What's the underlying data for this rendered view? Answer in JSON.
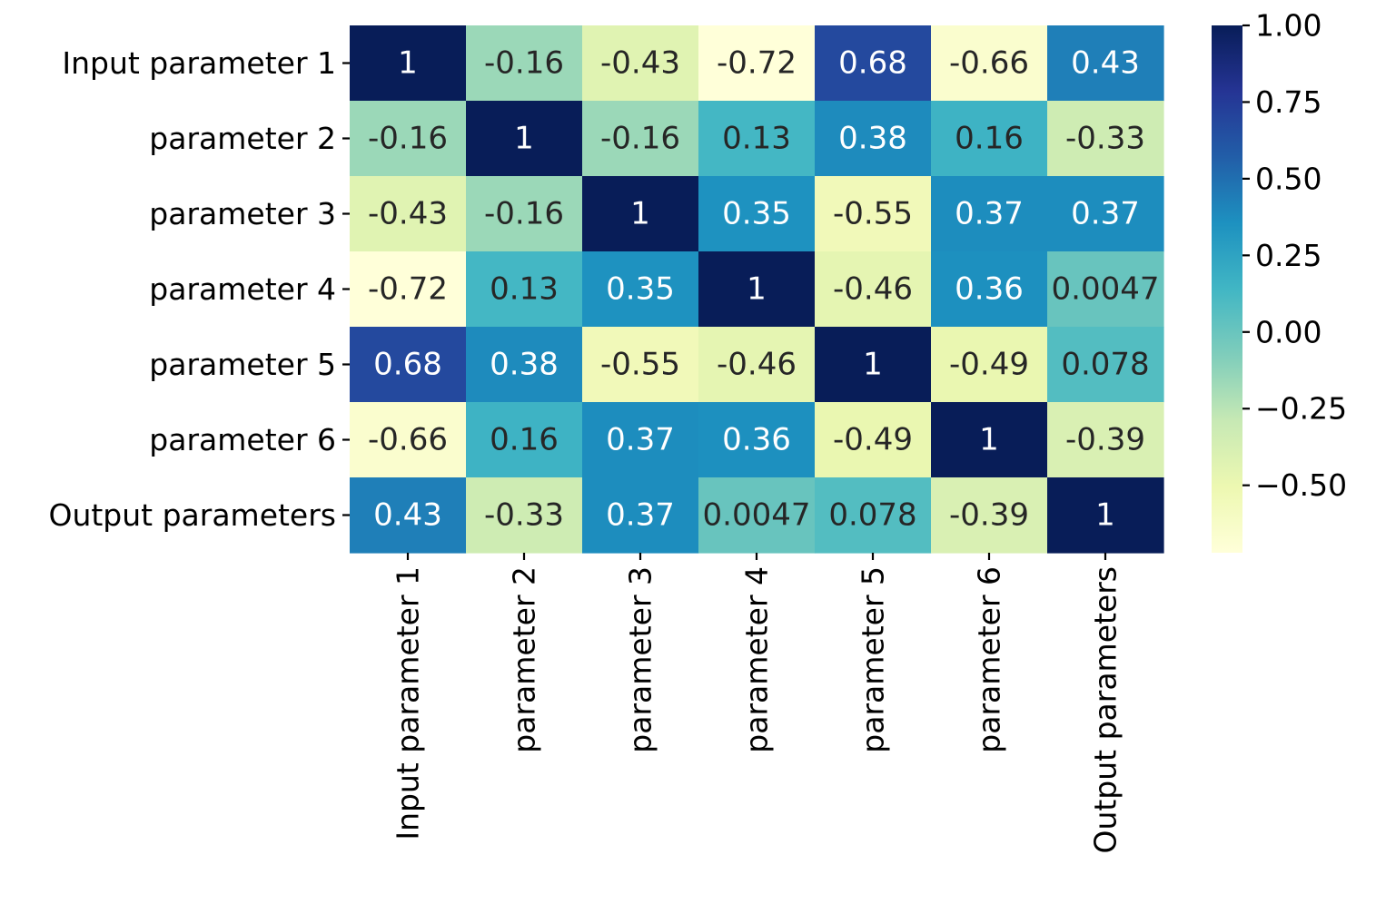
{
  "chart_data": {
    "type": "heatmap",
    "title": "",
    "xlabel": "",
    "ylabel": "",
    "row_labels": [
      "Input parameter 1",
      "parameter 2",
      "parameter 3",
      "parameter 4",
      "parameter 5",
      "parameter 6",
      "Output parameters"
    ],
    "col_labels": [
      "Input parameter 1",
      "parameter 2",
      "parameter 3",
      "parameter 4",
      "parameter 5",
      "parameter 6",
      "Output parameters"
    ],
    "values": [
      [
        1,
        -0.16,
        -0.43,
        -0.72,
        0.68,
        -0.66,
        0.43
      ],
      [
        -0.16,
        1,
        -0.16,
        0.13,
        0.38,
        0.16,
        -0.33
      ],
      [
        -0.43,
        -0.16,
        1,
        0.35,
        -0.55,
        0.37,
        0.37
      ],
      [
        -0.72,
        0.13,
        0.35,
        1,
        -0.46,
        0.36,
        0.0047
      ],
      [
        0.68,
        0.38,
        -0.55,
        -0.46,
        1,
        -0.49,
        0.078
      ],
      [
        -0.66,
        0.16,
        0.37,
        0.36,
        -0.49,
        1,
        -0.39
      ],
      [
        0.43,
        -0.33,
        0.37,
        0.0047,
        0.078,
        -0.39,
        1
      ]
    ],
    "display_values": [
      [
        "1",
        "-0.16",
        "-0.43",
        "-0.72",
        "0.68",
        "-0.66",
        "0.43"
      ],
      [
        "-0.16",
        "1",
        "-0.16",
        "0.13",
        "0.38",
        "0.16",
        "-0.33"
      ],
      [
        "-0.43",
        "-0.16",
        "1",
        "0.35",
        "-0.55",
        "0.37",
        "0.37"
      ],
      [
        "-0.72",
        "0.13",
        "0.35",
        "1",
        "-0.46",
        "0.36",
        "0.0047"
      ],
      [
        "0.68",
        "0.38",
        "-0.55",
        "-0.46",
        "1",
        "-0.49",
        "0.078"
      ],
      [
        "-0.66",
        "0.16",
        "0.37",
        "0.36",
        "-0.49",
        "1",
        "-0.39"
      ],
      [
        "0.43",
        "-0.33",
        "0.37",
        "0.0047",
        "0.078",
        "-0.39",
        "1"
      ]
    ],
    "colormap": "YlGnBu",
    "colormap_stops": [
      "#ffffd9",
      "#edf8b1",
      "#c7e9b4",
      "#7fcdbb",
      "#41b6c4",
      "#1d91c0",
      "#225ea8",
      "#253494",
      "#081d58"
    ],
    "vmin": -0.72,
    "vmax": 1.0,
    "colorbar": {
      "ticks": [
        1.0,
        0.75,
        0.5,
        0.25,
        0.0,
        -0.25,
        -0.5
      ],
      "tick_labels": [
        "1.00",
        "0.75",
        "0.50",
        "0.25",
        "0.00",
        "−0.25",
        "−0.50"
      ]
    },
    "text_color_dark": "#262626",
    "text_color_light": "#ffffff"
  }
}
